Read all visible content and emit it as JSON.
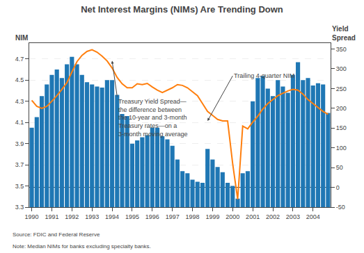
{
  "chart_data": {
    "type": "bar",
    "title": "Net Interest Margins (NIMs) Are Trending Down",
    "ylabel": "NIM",
    "y2label": "Yield\nSpread",
    "annotations": [
      "Trailing 4-quarter NIM",
      "Treasury Yield Spread—\nthe difference between\nthe 10-year and 3-month\nTreasury rates—on a\n3-month moving average"
    ],
    "source": "Source: FDIC and Federal Reserve",
    "note": "Note: Median NIMs for banks excluding specialty banks.",
    "categories": [
      "1990",
      null,
      null,
      null,
      "1991",
      null,
      null,
      null,
      "1992",
      null,
      null,
      null,
      "1993",
      null,
      null,
      null,
      "1994",
      null,
      null,
      null,
      "1995",
      null,
      null,
      null,
      "1996",
      null,
      null,
      null,
      "1997",
      null,
      null,
      null,
      "1998",
      null,
      null,
      null,
      "1999",
      null,
      null,
      null,
      "2000",
      null,
      null,
      null,
      "2001",
      null,
      null,
      null,
      "2002",
      null,
      null,
      null,
      "2003",
      null,
      null,
      null,
      "2004",
      null,
      null,
      null
    ],
    "series": [
      {
        "type": "bar",
        "values": [
          4.05,
          4.15,
          4.35,
          4.46,
          4.55,
          4.6,
          4.52,
          4.65,
          4.72,
          4.65,
          4.55,
          4.48,
          4.46,
          4.44,
          4.43,
          4.5,
          4.5,
          4.36,
          4.18,
          4.16,
          3.9,
          3.93,
          3.96,
          3.98,
          4.05,
          4.05,
          3.97,
          3.94,
          3.88,
          3.75,
          3.64,
          3.62,
          3.56,
          3.54,
          3.53,
          3.85,
          3.75,
          3.68,
          3.63,
          3.53,
          3.5,
          3.38,
          3.62,
          3.64,
          4.3,
          4.52,
          4.54,
          4.42,
          4.35,
          4.5,
          4.44,
          4.38,
          4.55,
          4.67,
          4.5,
          4.52,
          4.45,
          4.47,
          4.46,
          4.19
        ]
      },
      {
        "type": "line",
        "axis": "y2",
        "values": [
          220,
          205,
          200,
          205,
          218,
          232,
          248,
          265,
          292,
          318,
          334,
          344,
          348,
          342,
          332,
          320,
          302,
          278,
          262,
          252,
          252,
          262,
          260,
          263,
          254,
          246,
          240,
          246,
          252,
          260,
          258,
          252,
          242,
          232,
          212,
          192,
          182,
          172,
          168,
          168,
          60,
          -30,
          155,
          148,
          165,
          180,
          198,
          212,
          222,
          232,
          238,
          244,
          248,
          246,
          236,
          222,
          212,
          202,
          192,
          185
        ]
      }
    ],
    "ylim": [
      3.3,
      4.85
    ],
    "yticks": [
      3.3,
      3.5,
      3.7,
      3.9,
      4.1,
      4.3,
      4.5,
      4.7
    ],
    "y2lim": [
      -50,
      365
    ],
    "y2ticks": [
      -50,
      0,
      50,
      100,
      150,
      200,
      250,
      300,
      350
    ],
    "grid": true
  }
}
